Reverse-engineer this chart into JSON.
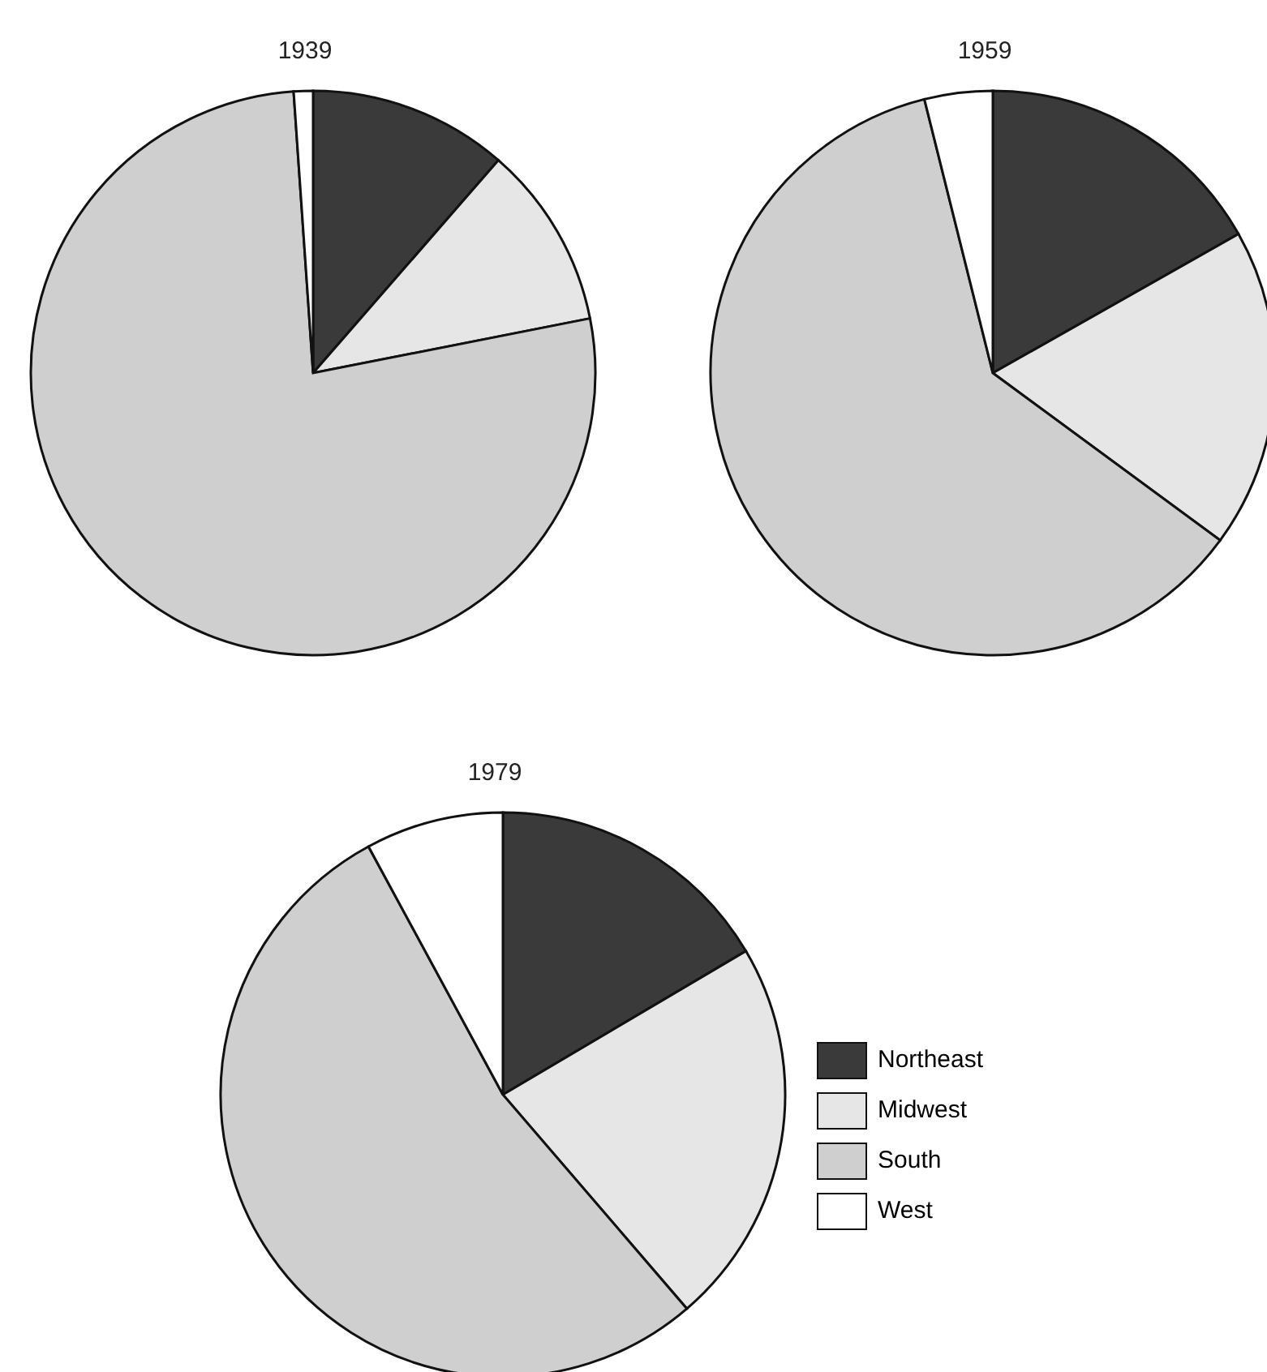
{
  "chart_data": [
    {
      "type": "pie",
      "title": "1939",
      "categories": [
        null,
        null,
        null,
        null
      ],
      "values": [
        11.4,
        10.5,
        77,
        1.1
      ],
      "colors": [
        "#3a3a3a",
        "#e6e6e6",
        "#cfcfcf",
        "#ffffff"
      ]
    },
    {
      "type": "pie",
      "title": "1959",
      "categories": [
        null,
        null,
        null,
        null
      ],
      "values": [
        16.8,
        18.3,
        61,
        3.9
      ],
      "colors": [
        "#3a3a3a",
        "#e6e6e6",
        "#cfcfcf",
        "#ffffff"
      ]
    },
    {
      "type": "pie",
      "title": "1979",
      "categories": [
        "Northeast",
        "Midwest",
        "South",
        "West"
      ],
      "values": [
        16.5,
        22.2,
        53.4,
        7.9
      ],
      "colors": [
        "#3a3a3a",
        "#e6e6e6",
        "#cfcfcf",
        "#ffffff"
      ],
      "legend": "right"
    }
  ]
}
